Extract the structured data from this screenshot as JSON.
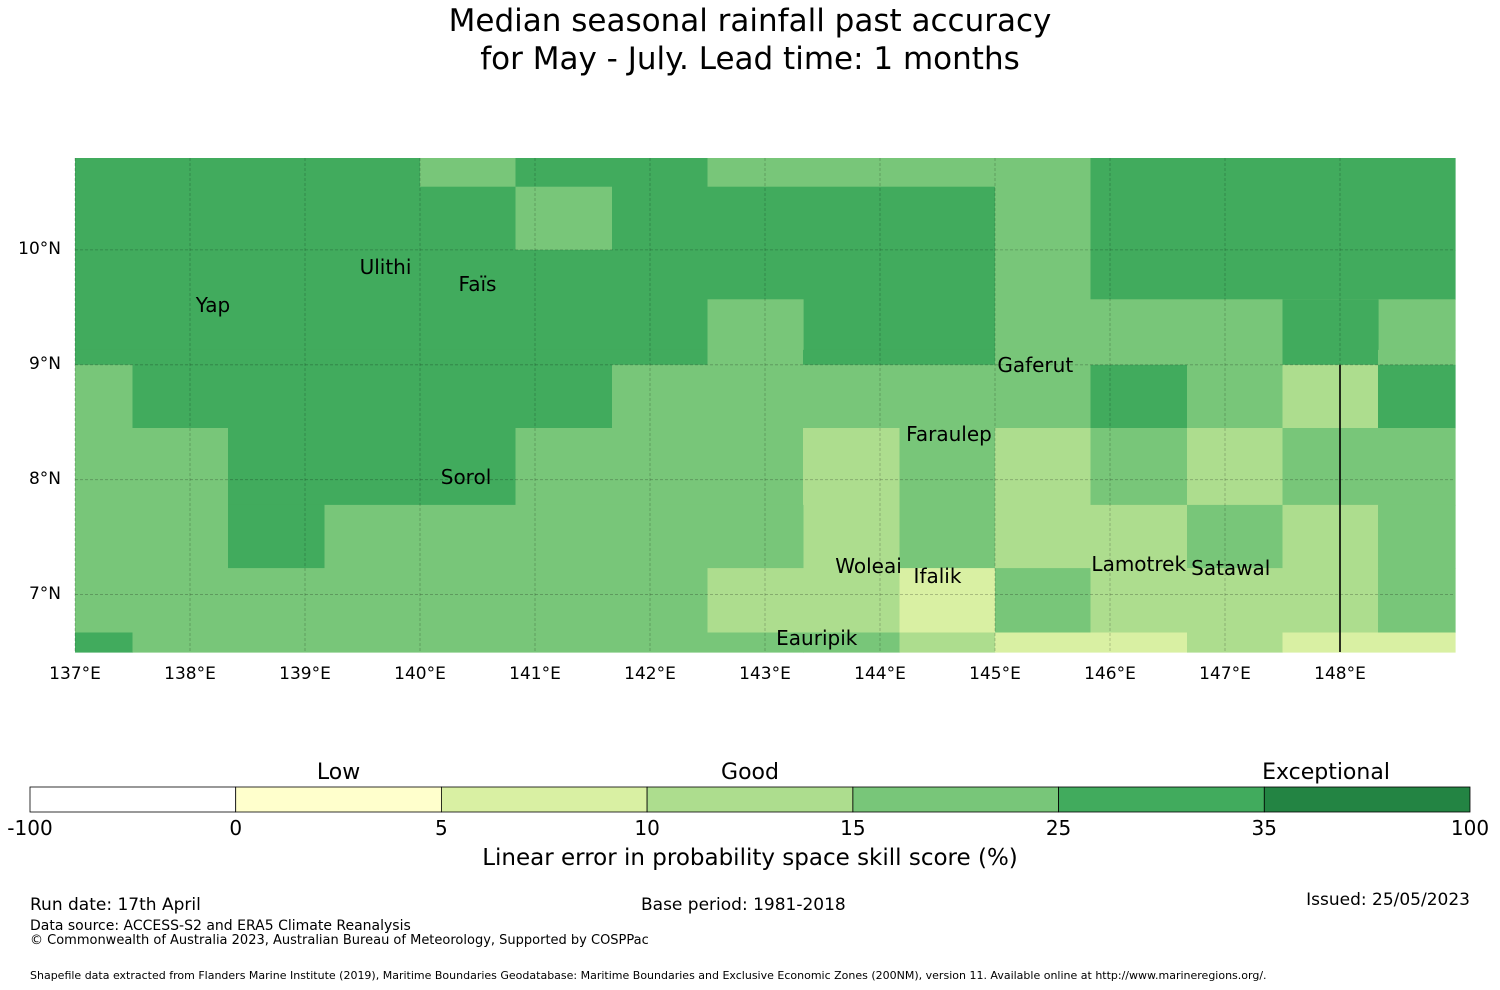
{
  "title": {
    "line1": "Median seasonal rainfall past accuracy",
    "line2": "for May - July. Lead time: 1 months"
  },
  "map": {
    "lon_range": [
      137,
      149
    ],
    "lat_range": [
      6.5,
      10.8
    ],
    "lon_ticks": [
      {
        "value": 137,
        "label": "137°E"
      },
      {
        "value": 138,
        "label": "138°E"
      },
      {
        "value": 139,
        "label": "139°E"
      },
      {
        "value": 140,
        "label": "140°E"
      },
      {
        "value": 141,
        "label": "141°E"
      },
      {
        "value": 142,
        "label": "142°E"
      },
      {
        "value": 143,
        "label": "143°E"
      },
      {
        "value": 144,
        "label": "144°E"
      },
      {
        "value": 145,
        "label": "145°E"
      },
      {
        "value": 146,
        "label": "146°E"
      },
      {
        "value": 147,
        "label": "147°E"
      },
      {
        "value": 148,
        "label": "148°E"
      }
    ],
    "lat_ticks": [
      {
        "value": 7,
        "label": "7°N"
      },
      {
        "value": 8,
        "label": "8°N"
      },
      {
        "value": 9,
        "label": "9°N"
      },
      {
        "value": 10,
        "label": "10°N"
      }
    ],
    "boundary_line": {
      "lon": 148,
      "lat_from": 6.5,
      "lat_to": 9.0
    },
    "grid_cells": [
      {
        "lon0": 137.0,
        "lon1": 140.0,
        "lat0": 10.0,
        "lat1": 10.8,
        "cls": 5
      },
      {
        "lon0": 140.0,
        "lon1": 140.83,
        "lat0": 10.55,
        "lat1": 10.8,
        "cls": 4
      },
      {
        "lon0": 140.0,
        "lon1": 140.83,
        "lat0": 10.0,
        "lat1": 10.55,
        "cls": 5
      },
      {
        "lon0": 140.83,
        "lon1": 141.67,
        "lat0": 10.55,
        "lat1": 10.8,
        "cls": 5
      },
      {
        "lon0": 140.83,
        "lon1": 141.67,
        "lat0": 10.0,
        "lat1": 10.55,
        "cls": 4
      },
      {
        "lon0": 141.67,
        "lon1": 142.5,
        "lat0": 10.0,
        "lat1": 10.8,
        "cls": 5
      },
      {
        "lon0": 142.5,
        "lon1": 145.0,
        "lat0": 10.55,
        "lat1": 10.8,
        "cls": 4
      },
      {
        "lon0": 142.5,
        "lon1": 145.0,
        "lat0": 10.0,
        "lat1": 10.55,
        "cls": 5
      },
      {
        "lon0": 145.0,
        "lon1": 145.83,
        "lat0": 10.0,
        "lat1": 10.8,
        "cls": 4
      },
      {
        "lon0": 145.83,
        "lon1": 149.0,
        "lat0": 10.0,
        "lat1": 10.8,
        "cls": 5
      },
      {
        "lon0": 137.0,
        "lon1": 142.5,
        "lat0": 9.13,
        "lat1": 10.0,
        "cls": 5
      },
      {
        "lon0": 142.5,
        "lon1": 143.33,
        "lat0": 9.13,
        "lat1": 10.0,
        "cls": 5
      },
      {
        "lon0": 143.33,
        "lon1": 145.0,
        "lat0": 9.13,
        "lat1": 10.0,
        "cls": 5
      },
      {
        "lon0": 145.0,
        "lon1": 145.83,
        "lat0": 9.13,
        "lat1": 10.0,
        "cls": 4
      },
      {
        "lon0": 145.83,
        "lon1": 149.0,
        "lat0": 9.57,
        "lat1": 10.0,
        "cls": 5
      },
      {
        "lon0": 145.83,
        "lon1": 148.33,
        "lat0": 9.13,
        "lat1": 9.57,
        "cls": 4
      },
      {
        "lon0": 148.33,
        "lon1": 149.0,
        "lat0": 9.13,
        "lat1": 9.57,
        "cls": 4
      },
      {
        "lon0": 137.0,
        "lon1": 142.5,
        "lat0": 9.0,
        "lat1": 9.13,
        "cls": 5
      },
      {
        "lon0": 142.5,
        "lon1": 143.33,
        "lat0": 9.0,
        "lat1": 9.57,
        "cls": 4
      },
      {
        "lon0": 143.33,
        "lon1": 145.0,
        "lat0": 9.0,
        "lat1": 9.13,
        "cls": 5
      },
      {
        "lon0": 145.0,
        "lon1": 145.83,
        "lat0": 9.0,
        "lat1": 9.13,
        "cls": 4
      },
      {
        "lon0": 145.83,
        "lon1": 147.5,
        "lat0": 9.0,
        "lat1": 9.13,
        "cls": 4
      },
      {
        "lon0": 147.5,
        "lon1": 148.33,
        "lat0": 9.0,
        "lat1": 9.57,
        "cls": 5
      },
      {
        "lon0": 148.33,
        "lon1": 149.0,
        "lat0": 9.0,
        "lat1": 9.13,
        "cls": 4
      },
      {
        "lon0": 137.0,
        "lon1": 137.5,
        "lat0": 8.45,
        "lat1": 9.0,
        "cls": 4
      },
      {
        "lon0": 137.5,
        "lon1": 141.67,
        "lat0": 8.45,
        "lat1": 9.0,
        "cls": 5
      },
      {
        "lon0": 141.67,
        "lon1": 145.83,
        "lat0": 8.45,
        "lat1": 9.0,
        "cls": 4
      },
      {
        "lon0": 145.83,
        "lon1": 146.67,
        "lat0": 8.45,
        "lat1": 9.0,
        "cls": 5
      },
      {
        "lon0": 146.67,
        "lon1": 147.5,
        "lat0": 8.45,
        "lat1": 9.0,
        "cls": 4
      },
      {
        "lon0": 147.5,
        "lon1": 148.33,
        "lat0": 8.45,
        "lat1": 9.0,
        "cls": 3
      },
      {
        "lon0": 148.33,
        "lon1": 149.0,
        "lat0": 8.45,
        "lat1": 9.0,
        "cls": 5
      },
      {
        "lon0": 137.0,
        "lon1": 138.33,
        "lat0": 7.23,
        "lat1": 8.45,
        "cls": 4
      },
      {
        "lon0": 138.33,
        "lon1": 140.83,
        "lat0": 7.78,
        "lat1": 8.45,
        "cls": 5
      },
      {
        "lon0": 140.83,
        "lon1": 143.33,
        "lat0": 7.78,
        "lat1": 8.45,
        "cls": 4
      },
      {
        "lon0": 143.33,
        "lon1": 144.17,
        "lat0": 7.23,
        "lat1": 8.45,
        "cls": 3
      },
      {
        "lon0": 144.17,
        "lon1": 145.0,
        "lat0": 7.23,
        "lat1": 8.45,
        "cls": 4
      },
      {
        "lon0": 145.0,
        "lon1": 145.83,
        "lat0": 7.23,
        "lat1": 8.45,
        "cls": 3
      },
      {
        "lon0": 145.83,
        "lon1": 146.67,
        "lat0": 7.78,
        "lat1": 8.45,
        "cls": 4
      },
      {
        "lon0": 146.67,
        "lon1": 147.5,
        "lat0": 7.78,
        "lat1": 8.45,
        "cls": 3
      },
      {
        "lon0": 147.5,
        "lon1": 149.0,
        "lat0": 7.78,
        "lat1": 8.45,
        "cls": 4
      },
      {
        "lon0": 138.33,
        "lon1": 139.17,
        "lat0": 7.23,
        "lat1": 7.78,
        "cls": 5
      },
      {
        "lon0": 139.17,
        "lon1": 143.33,
        "lat0": 7.23,
        "lat1": 7.78,
        "cls": 4
      },
      {
        "lon0": 145.83,
        "lon1": 146.67,
        "lat0": 7.23,
        "lat1": 7.78,
        "cls": 3
      },
      {
        "lon0": 146.67,
        "lon1": 147.5,
        "lat0": 7.23,
        "lat1": 7.78,
        "cls": 4
      },
      {
        "lon0": 147.5,
        "lon1": 148.33,
        "lat0": 7.23,
        "lat1": 7.78,
        "cls": 3
      },
      {
        "lon0": 148.33,
        "lon1": 149.0,
        "lat0": 7.23,
        "lat1": 7.78,
        "cls": 4
      },
      {
        "lon0": 137.0,
        "lon1": 142.5,
        "lat0": 6.67,
        "lat1": 7.23,
        "cls": 4
      },
      {
        "lon0": 142.5,
        "lon1": 144.17,
        "lat0": 6.67,
        "lat1": 7.23,
        "cls": 3
      },
      {
        "lon0": 144.17,
        "lon1": 145.0,
        "lat0": 6.67,
        "lat1": 7.23,
        "cls": 2
      },
      {
        "lon0": 145.0,
        "lon1": 145.83,
        "lat0": 6.67,
        "lat1": 7.23,
        "cls": 4
      },
      {
        "lon0": 145.83,
        "lon1": 148.33,
        "lat0": 6.67,
        "lat1": 7.23,
        "cls": 3
      },
      {
        "lon0": 148.33,
        "lon1": 149.0,
        "lat0": 6.67,
        "lat1": 7.23,
        "cls": 4
      },
      {
        "lon0": 137.0,
        "lon1": 137.5,
        "lat0": 6.5,
        "lat1": 6.67,
        "cls": 5
      },
      {
        "lon0": 137.5,
        "lon1": 143.33,
        "lat0": 6.5,
        "lat1": 6.67,
        "cls": 4
      },
      {
        "lon0": 143.33,
        "lon1": 144.17,
        "lat0": 6.5,
        "lat1": 6.67,
        "cls": 4
      },
      {
        "lon0": 144.17,
        "lon1": 145.0,
        "lat0": 6.5,
        "lat1": 6.67,
        "cls": 3
      },
      {
        "lon0": 145.0,
        "lon1": 146.67,
        "lat0": 6.5,
        "lat1": 6.67,
        "cls": 2
      },
      {
        "lon0": 146.67,
        "lon1": 147.5,
        "lat0": 6.5,
        "lat1": 6.67,
        "cls": 3
      },
      {
        "lon0": 147.5,
        "lon1": 149.0,
        "lat0": 6.5,
        "lat1": 6.67,
        "cls": 2
      }
    ],
    "islands": [
      {
        "name": "Ulithi",
        "lon": 139.7,
        "lat": 9.85
      },
      {
        "name": "Faïs",
        "lon": 140.5,
        "lat": 9.7
      },
      {
        "name": "Yap",
        "lon": 138.2,
        "lat": 9.52
      },
      {
        "name": "Gaferut",
        "lon": 145.35,
        "lat": 9.0
      },
      {
        "name": "Faraulep",
        "lon": 144.6,
        "lat": 8.4
      },
      {
        "name": "Sorol",
        "lon": 140.4,
        "lat": 8.02
      },
      {
        "name": "Woleai",
        "lon": 143.9,
        "lat": 7.25
      },
      {
        "name": "Ifalik",
        "lon": 144.5,
        "lat": 7.16
      },
      {
        "name": "Lamotrek",
        "lon": 146.25,
        "lat": 7.27
      },
      {
        "name": "Satawal",
        "lon": 147.05,
        "lat": 7.23
      },
      {
        "name": "Eauripik",
        "lon": 143.45,
        "lat": 6.62
      }
    ]
  },
  "colorbar": {
    "categories": [
      "Low",
      "Good",
      "Exceptional"
    ],
    "ticks": [
      "-100",
      "0",
      "5",
      "10",
      "15",
      "25",
      "35",
      "100"
    ],
    "colors": [
      "#ffffff",
      "#ffffcc",
      "#d9f0a3",
      "#addd8e",
      "#78c679",
      "#41ab5d",
      "#238443"
    ],
    "label": "Linear error in probability space skill score (%)"
  },
  "footer": {
    "run_date": "Run date: 17th April",
    "base_period": "Base period: 1981-2018",
    "issued": "Issued: 25/05/2023",
    "data_source": "Data source: ACCESS-S2 and ERA5 Climate Reanalysis",
    "copyright": "© Commonwealth of Australia 2023, Australian Bureau of Meteorology, Supported by COSPPac",
    "shapefile": "Shapefile data extracted from Flanders Marine Institute (2019), Maritime Boundaries Geodatabase: Maritime Boundaries and Exclusive Economic Zones (200NM), version 11. Available online at http://www.marineregions.org/."
  }
}
